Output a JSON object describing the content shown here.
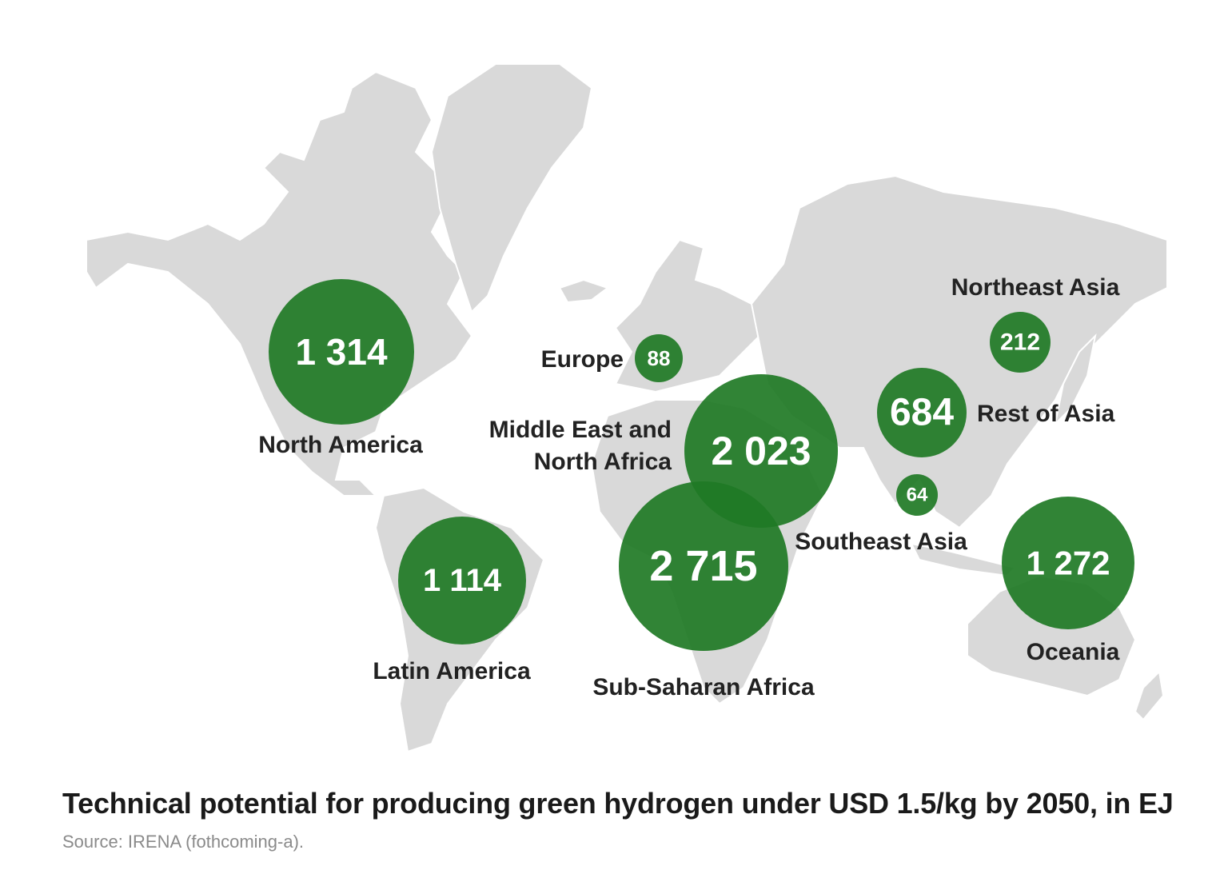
{
  "title": "Technical potential for producing green hydrogen under USD 1.5/kg by 2050, in EJ",
  "source": "Source: IRENA (fothcoming-a).",
  "colors": {
    "bubble": "#1f7a25",
    "land": "#d9d9d9",
    "label": "#222222"
  },
  "regions": [
    {
      "id": "north-america",
      "name": "North America",
      "value": "1 314"
    },
    {
      "id": "latin-america",
      "name": "Latin America",
      "value": "1 114"
    },
    {
      "id": "europe",
      "name": "Europe",
      "value": "88"
    },
    {
      "id": "mena",
      "name_line1": "Middle East and",
      "name_line2": "North Africa",
      "value": "2 023"
    },
    {
      "id": "ssa",
      "name": "Sub-Saharan Africa",
      "value": "2 715"
    },
    {
      "id": "northeast-asia",
      "name": "Northeast Asia",
      "value": "212"
    },
    {
      "id": "rest-of-asia",
      "name": "Rest of Asia",
      "value": "684"
    },
    {
      "id": "southeast-asia",
      "name": "Southeast Asia",
      "value": "64"
    },
    {
      "id": "oceania",
      "name": "Oceania",
      "value": "1 272"
    }
  ]
}
